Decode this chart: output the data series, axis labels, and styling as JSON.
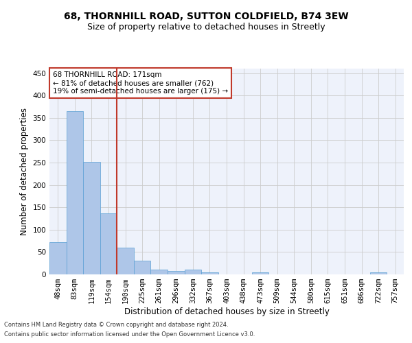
{
  "title_line1": "68, THORNHILL ROAD, SUTTON COLDFIELD, B74 3EW",
  "title_line2": "Size of property relative to detached houses in Streetly",
  "xlabel": "Distribution of detached houses by size in Streetly",
  "ylabel": "Number of detached properties",
  "footnote1": "Contains HM Land Registry data © Crown copyright and database right 2024.",
  "footnote2": "Contains public sector information licensed under the Open Government Licence v3.0.",
  "annotation_line1": "68 THORNHILL ROAD: 171sqm",
  "annotation_line2": "← 81% of detached houses are smaller (762)",
  "annotation_line3": "19% of semi-detached houses are larger (175) →",
  "bar_labels": [
    "48sqm",
    "83sqm",
    "119sqm",
    "154sqm",
    "190sqm",
    "225sqm",
    "261sqm",
    "296sqm",
    "332sqm",
    "367sqm",
    "403sqm",
    "438sqm",
    "473sqm",
    "509sqm",
    "544sqm",
    "580sqm",
    "615sqm",
    "651sqm",
    "686sqm",
    "722sqm",
    "757sqm"
  ],
  "bar_heights": [
    72,
    365,
    252,
    137,
    60,
    30,
    10,
    8,
    10,
    5,
    0,
    0,
    4,
    0,
    0,
    0,
    0,
    0,
    0,
    4,
    0
  ],
  "bar_color": "#aec6e8",
  "bar_edge_color": "#5a9fd4",
  "vline_color": "#c0392b",
  "vline_x": 3.5,
  "ylim": [
    0,
    460
  ],
  "yticks": [
    0,
    50,
    100,
    150,
    200,
    250,
    300,
    350,
    400,
    450
  ],
  "background_color": "#eef2fb",
  "grid_color": "#cccccc",
  "annotation_box_color": "#c0392b",
  "title_fontsize": 10,
  "subtitle_fontsize": 9,
  "axis_label_fontsize": 8.5,
  "tick_fontsize": 7.5,
  "footnote_fontsize": 6
}
